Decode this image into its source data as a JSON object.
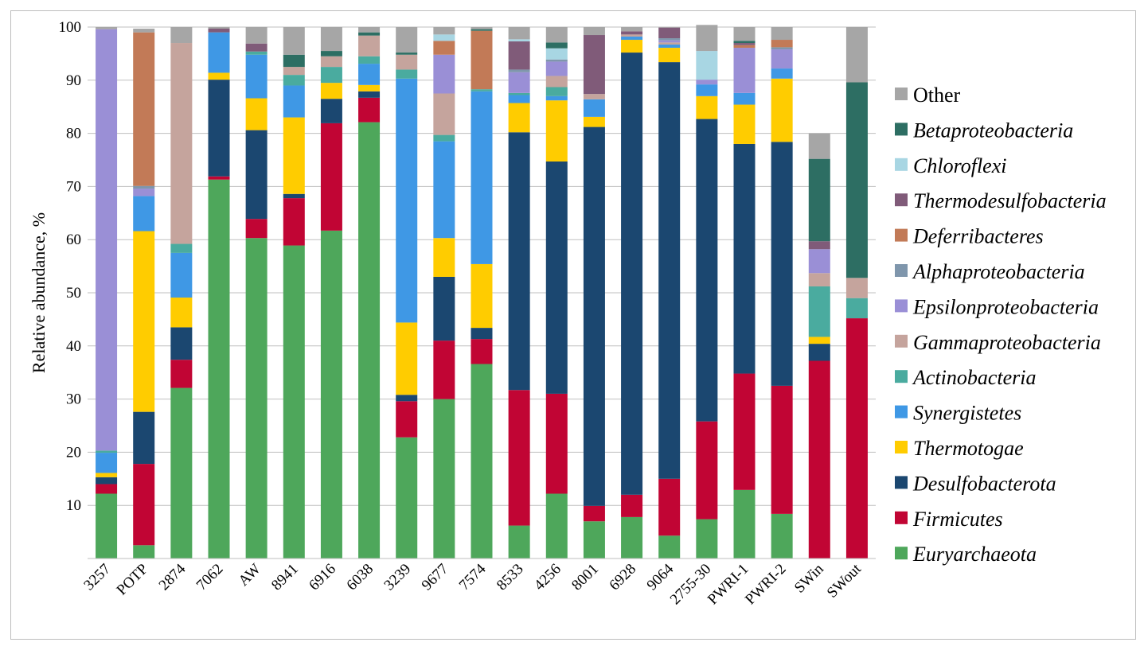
{
  "chart_data": {
    "type": "stacked_bar",
    "title": "",
    "xlabel": "",
    "ylabel": "Relative abundance, %",
    "ylim": [
      0,
      100
    ],
    "yticks": [
      10,
      20,
      30,
      40,
      50,
      60,
      70,
      80,
      90,
      100
    ],
    "grid": true,
    "legend_position": "right",
    "categories": [
      "3257",
      "POTP",
      "2874",
      "7062",
      "AW",
      "8941",
      "6916",
      "6038",
      "3239",
      "9677",
      "7574",
      "8533",
      "4256",
      "8001",
      "6928",
      "9064",
      "2755-30",
      "PWRI-1",
      "PWRI-2",
      "SWin",
      "SWout"
    ],
    "series": [
      {
        "name": "Euryarchaeota",
        "italic": true,
        "color": "#4ea75b",
        "values": [
          12.2,
          2.5,
          32.1,
          71.3,
          60.3,
          58.9,
          61.7,
          82.1,
          22.8,
          30.0,
          36.6,
          6.2,
          12.2,
          7.0,
          7.8,
          4.3,
          7.4,
          12.9,
          8.4,
          0.0,
          0.0
        ]
      },
      {
        "name": "Firmicutes",
        "italic": true,
        "color": "#c10534",
        "values": [
          1.8,
          15.3,
          5.3,
          0.6,
          3.6,
          8.9,
          20.2,
          4.6,
          6.8,
          11.0,
          4.7,
          25.5,
          18.8,
          2.9,
          4.2,
          10.7,
          18.4,
          21.9,
          24.1,
          37.2,
          45.2
        ]
      },
      {
        "name": "Desulfobacterota",
        "italic": true,
        "color": "#1b4770",
        "values": [
          1.3,
          9.8,
          6.1,
          18.2,
          16.7,
          0.8,
          4.6,
          1.2,
          1.2,
          12.0,
          2.1,
          48.5,
          43.7,
          71.3,
          83.2,
          78.4,
          56.9,
          43.2,
          45.9,
          3.2,
          0.0
        ]
      },
      {
        "name": "Thermotogae",
        "italic": true,
        "color": "#ffcc00",
        "values": [
          0.8,
          34.0,
          5.6,
          1.3,
          6.0,
          14.4,
          3.0,
          1.2,
          13.6,
          7.3,
          12.0,
          5.5,
          11.5,
          1.9,
          2.4,
          2.7,
          4.3,
          7.4,
          11.9,
          1.3,
          0.0
        ]
      },
      {
        "name": "Synergistetes",
        "italic": true,
        "color": "#3f98e5",
        "values": [
          3.8,
          6.6,
          8.4,
          7.6,
          8.2,
          6.0,
          0.0,
          4.0,
          45.9,
          18.2,
          32.5,
          1.5,
          0.8,
          3.3,
          0.6,
          0.6,
          2.2,
          2.2,
          1.9,
          0.0,
          0.0
        ]
      },
      {
        "name": "Actinobacteria",
        "italic": true,
        "color": "#4aab9f",
        "values": [
          0.4,
          0.0,
          1.7,
          0.0,
          0.6,
          2.0,
          3.0,
          1.4,
          1.7,
          1.2,
          0.4,
          0.4,
          1.7,
          0.0,
          0.0,
          0.0,
          0.0,
          0.0,
          0.0,
          9.5,
          3.8
        ]
      },
      {
        "name": "Gammaproteobacteria",
        "italic": true,
        "color": "#c5a49d",
        "values": [
          0.0,
          0.0,
          37.8,
          0.0,
          0.0,
          1.5,
          2.0,
          3.9,
          2.8,
          7.8,
          0.0,
          0.0,
          2.1,
          1.0,
          0.4,
          0.4,
          0.0,
          0.0,
          0.0,
          2.5,
          3.8
        ]
      },
      {
        "name": "Epsilonproteobacteria",
        "italic": true,
        "color": "#9a8fd6",
        "values": [
          79.3,
          1.4,
          0.0,
          0.0,
          0.0,
          0.0,
          0.0,
          0.0,
          0.0,
          7.3,
          0.0,
          3.9,
          2.7,
          0.0,
          0.0,
          0.4,
          0.9,
          8.5,
          3.6,
          4.5,
          0.0
        ]
      },
      {
        "name": "Alphaproteobacteria",
        "italic": true,
        "color": "#7f96ac",
        "values": [
          0.0,
          0.5,
          0.0,
          0.0,
          0.0,
          0.0,
          0.0,
          0.0,
          0.0,
          0.0,
          0.0,
          0.5,
          0.4,
          0.0,
          0.0,
          0.4,
          0.0,
          0.0,
          0.4,
          0.0,
          0.0
        ]
      },
      {
        "name": "Deferribacteres",
        "italic": true,
        "color": "#c27a57",
        "values": [
          0.0,
          28.9,
          0.0,
          0.0,
          0.0,
          0.0,
          0.0,
          0.0,
          0.0,
          2.6,
          11.0,
          0.0,
          0.0,
          0.0,
          0.0,
          0.0,
          0.0,
          0.5,
          1.4,
          0.0,
          0.0
        ]
      },
      {
        "name": "Thermodesulfobacteria",
        "italic": true,
        "color": "#805b79",
        "values": [
          0.0,
          0.0,
          0.0,
          0.7,
          1.5,
          0.0,
          0.0,
          0.0,
          0.0,
          0.0,
          0.0,
          5.3,
          0.0,
          11.1,
          0.6,
          2.0,
          0.0,
          0.4,
          0.0,
          1.5,
          0.0
        ]
      },
      {
        "name": "Chloroflexi",
        "italic": true,
        "color": "#a8d6e3",
        "values": [
          0.0,
          0.0,
          0.0,
          0.0,
          0.0,
          0.0,
          0.0,
          0.0,
          0.0,
          1.2,
          0.0,
          0.4,
          2.1,
          0.0,
          0.0,
          0.0,
          5.4,
          0.0,
          0.0,
          0.0,
          0.0
        ]
      },
      {
        "name": "Betaproteobacteria",
        "italic": true,
        "color": "#2d6e63",
        "values": [
          0.0,
          0.0,
          0.0,
          0.0,
          0.0,
          2.3,
          1.0,
          0.6,
          0.4,
          0.0,
          0.3,
          0.0,
          1.1,
          0.0,
          0.0,
          0.0,
          0.0,
          0.4,
          0.0,
          15.5,
          36.8
        ]
      },
      {
        "name": "Other",
        "italic": false,
        "color": "#a6a6a6",
        "values": [
          0.4,
          0.7,
          3.0,
          0.3,
          3.1,
          5.2,
          4.5,
          1.0,
          4.8,
          1.4,
          0.4,
          2.3,
          2.9,
          1.5,
          0.8,
          0.1,
          4.9,
          2.6,
          2.4,
          4.8,
          10.4
        ]
      }
    ],
    "legend_order": [
      "Other",
      "Betaproteobacteria",
      "Chloroflexi",
      "Thermodesulfobacteria",
      "Deferribacteres",
      "Alphaproteobacteria",
      "Epsilonproteobacteria",
      "Gammaproteobacteria",
      "Actinobacteria",
      "Synergistetes",
      "Thermotogae",
      "Desulfobacterota",
      "Firmicutes",
      "Euryarchaeota"
    ]
  }
}
